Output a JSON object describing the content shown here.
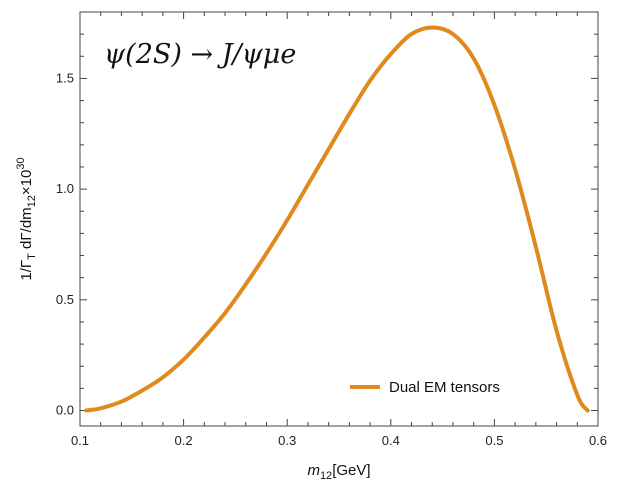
{
  "chart_data": {
    "type": "line",
    "title": "ψ(2S) → J/ψμe",
    "xlabel": {
      "main": "m",
      "sub": "12",
      "unit": "[GeV]"
    },
    "ylabel": {
      "prefix": "1/Γ",
      "sub1": "T",
      "mid": " dΓ/dm",
      "sub2": "12",
      "times": "×10",
      "sup": "30"
    },
    "xlim": [
      0.1,
      0.6
    ],
    "ylim": [
      -0.07,
      1.8
    ],
    "xticks": [
      0.1,
      0.2,
      0.3,
      0.4,
      0.5,
      0.6
    ],
    "xtick_labels": [
      "0.1",
      "0.2",
      "0.3",
      "0.4",
      "0.5",
      "0.6"
    ],
    "yticks": [
      0.0,
      0.5,
      1.0,
      1.5
    ],
    "ytick_labels": [
      "0.0",
      "0.5",
      "1.0",
      "1.5"
    ],
    "legend_position": "bottom-right",
    "color": "#e08a1e",
    "series": [
      {
        "name": "Dual EM tensors",
        "x": [
          0.106,
          0.12,
          0.14,
          0.16,
          0.18,
          0.2,
          0.22,
          0.24,
          0.26,
          0.28,
          0.3,
          0.32,
          0.34,
          0.36,
          0.38,
          0.4,
          0.42,
          0.44,
          0.46,
          0.48,
          0.5,
          0.52,
          0.54,
          0.56,
          0.58,
          0.59
        ],
        "y": [
          0.0,
          0.01,
          0.04,
          0.09,
          0.15,
          0.23,
          0.33,
          0.44,
          0.57,
          0.71,
          0.86,
          1.02,
          1.18,
          1.34,
          1.49,
          1.61,
          1.7,
          1.73,
          1.7,
          1.59,
          1.38,
          1.09,
          0.74,
          0.36,
          0.07,
          0.0
        ]
      }
    ]
  }
}
